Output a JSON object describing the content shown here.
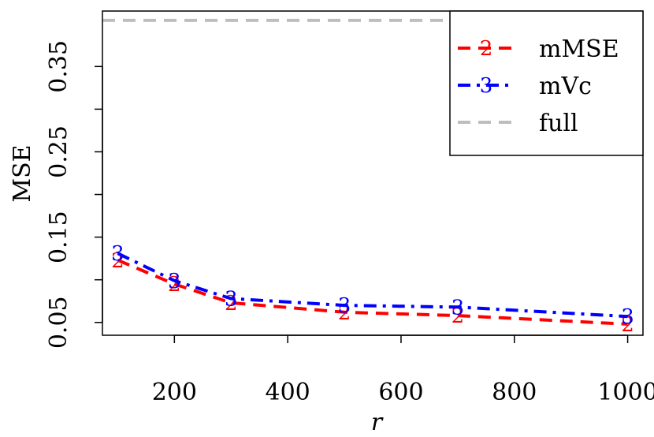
{
  "chart_data": {
    "type": "line",
    "xlabel": "r",
    "ylabel": "MSE",
    "x": [
      100,
      200,
      300,
      500,
      700,
      1000
    ],
    "xlim": [
      73,
      1027
    ],
    "ylim": [
      0.035,
      0.415
    ],
    "xticks": [
      200,
      400,
      600,
      800,
      1000
    ],
    "xtick_labels": [
      "200",
      "400",
      "600",
      "800",
      "1000"
    ],
    "yticks": [
      0.05,
      0.1,
      0.15,
      0.2,
      0.25,
      0.3,
      0.35
    ],
    "ytick_labels": [
      "0.05",
      "0.15",
      "0.25",
      "0.35"
    ],
    "series": [
      {
        "name": "mMSE",
        "marker": "2",
        "color": "#ff0000",
        "dash": "dashed",
        "values": [
          0.123,
          0.095,
          0.073,
          0.062,
          0.058,
          0.048
        ]
      },
      {
        "name": "mVc",
        "marker": "3",
        "color": "#0000ff",
        "dash": "dashdot",
        "values": [
          0.131,
          0.099,
          0.078,
          0.07,
          0.068,
          0.057
        ]
      }
    ],
    "reference_lines": [
      {
        "name": "full",
        "color": "#bebebe",
        "dash": "dashed",
        "value": 0.404
      }
    ],
    "grid": false,
    "legend": "top-right"
  }
}
